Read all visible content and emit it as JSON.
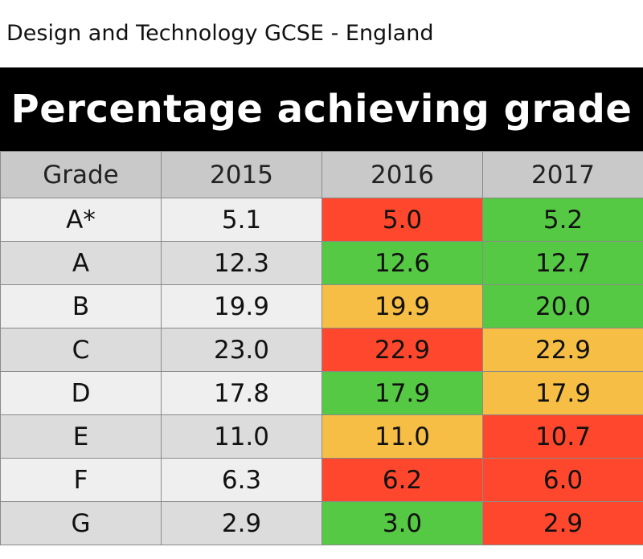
{
  "page_title": "Design and Technology GCSE - England",
  "banner_title": "Percentage achieving grade",
  "colors": {
    "green": "#56c944",
    "amber": "#f7be45",
    "red": "#fe472c",
    "header_bg": "#c9c9c9",
    "banner_bg": "#000000"
  },
  "chart_data": {
    "type": "table",
    "title": "Percentage achieving grade",
    "columns": [
      "Grade",
      "2015",
      "2016",
      "2017"
    ],
    "rows": [
      {
        "grade": "A*",
        "values": [
          "5.1",
          "5.0",
          "5.2"
        ],
        "status": [
          "none",
          "red",
          "green"
        ]
      },
      {
        "grade": "A",
        "values": [
          "12.3",
          "12.6",
          "12.7"
        ],
        "status": [
          "none",
          "green",
          "green"
        ]
      },
      {
        "grade": "B",
        "values": [
          "19.9",
          "19.9",
          "20.0"
        ],
        "status": [
          "none",
          "amber",
          "green"
        ]
      },
      {
        "grade": "C",
        "values": [
          "23.0",
          "22.9",
          "22.9"
        ],
        "status": [
          "none",
          "red",
          "amber"
        ]
      },
      {
        "grade": "D",
        "values": [
          "17.8",
          "17.9",
          "17.9"
        ],
        "status": [
          "none",
          "green",
          "amber"
        ]
      },
      {
        "grade": "E",
        "values": [
          "11.0",
          "11.0",
          "10.7"
        ],
        "status": [
          "none",
          "amber",
          "red"
        ]
      },
      {
        "grade": "F",
        "values": [
          "6.3",
          "6.2",
          "6.0"
        ],
        "status": [
          "none",
          "red",
          "red"
        ]
      },
      {
        "grade": "G",
        "values": [
          "2.9",
          "3.0",
          "2.9"
        ],
        "status": [
          "none",
          "green",
          "red"
        ]
      }
    ]
  }
}
